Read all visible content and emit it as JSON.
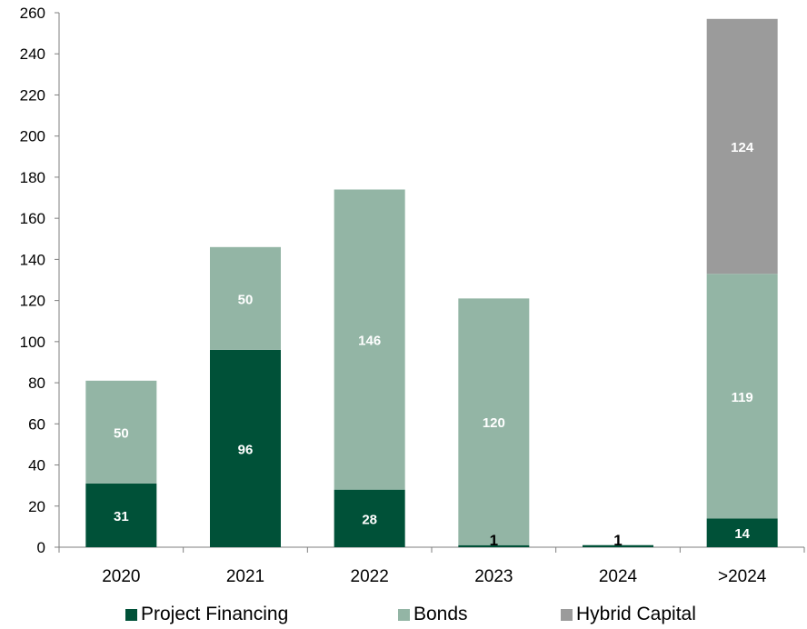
{
  "chart_data": {
    "type": "bar",
    "stacked": true,
    "categories": [
      "2020",
      "2021",
      "2022",
      "2023",
      "2024",
      ">2024"
    ],
    "series": [
      {
        "name": "Project Financing",
        "color": "#005138",
        "label_color": "#ffffff",
        "values": [
          31,
          96,
          28,
          1,
          1,
          14
        ]
      },
      {
        "name": "Bonds",
        "color": "#93b5a5",
        "label_color": "#ffffff",
        "values": [
          50,
          50,
          146,
          120,
          0,
          119
        ]
      },
      {
        "name": "Hybrid Capital",
        "color": "#9b9b9b",
        "label_color": "#ffffff",
        "values": [
          0,
          0,
          0,
          0,
          0,
          124
        ]
      }
    ],
    "data_labels": [
      [
        "31",
        "96",
        "28",
        "1",
        "1",
        "14"
      ],
      [
        "50",
        "50",
        "146",
        "120",
        "",
        "119"
      ],
      [
        "",
        "",
        "",
        "",
        "",
        "124"
      ]
    ],
    "ylim": [
      0,
      260
    ],
    "yticks": [
      "0",
      "20",
      "40",
      "60",
      "80",
      "100",
      "120",
      "140",
      "160",
      "180",
      "200",
      "220",
      "240",
      "260"
    ],
    "grid": false,
    "legend_position": "bottom",
    "title": "",
    "xlabel": "",
    "ylabel": ""
  }
}
